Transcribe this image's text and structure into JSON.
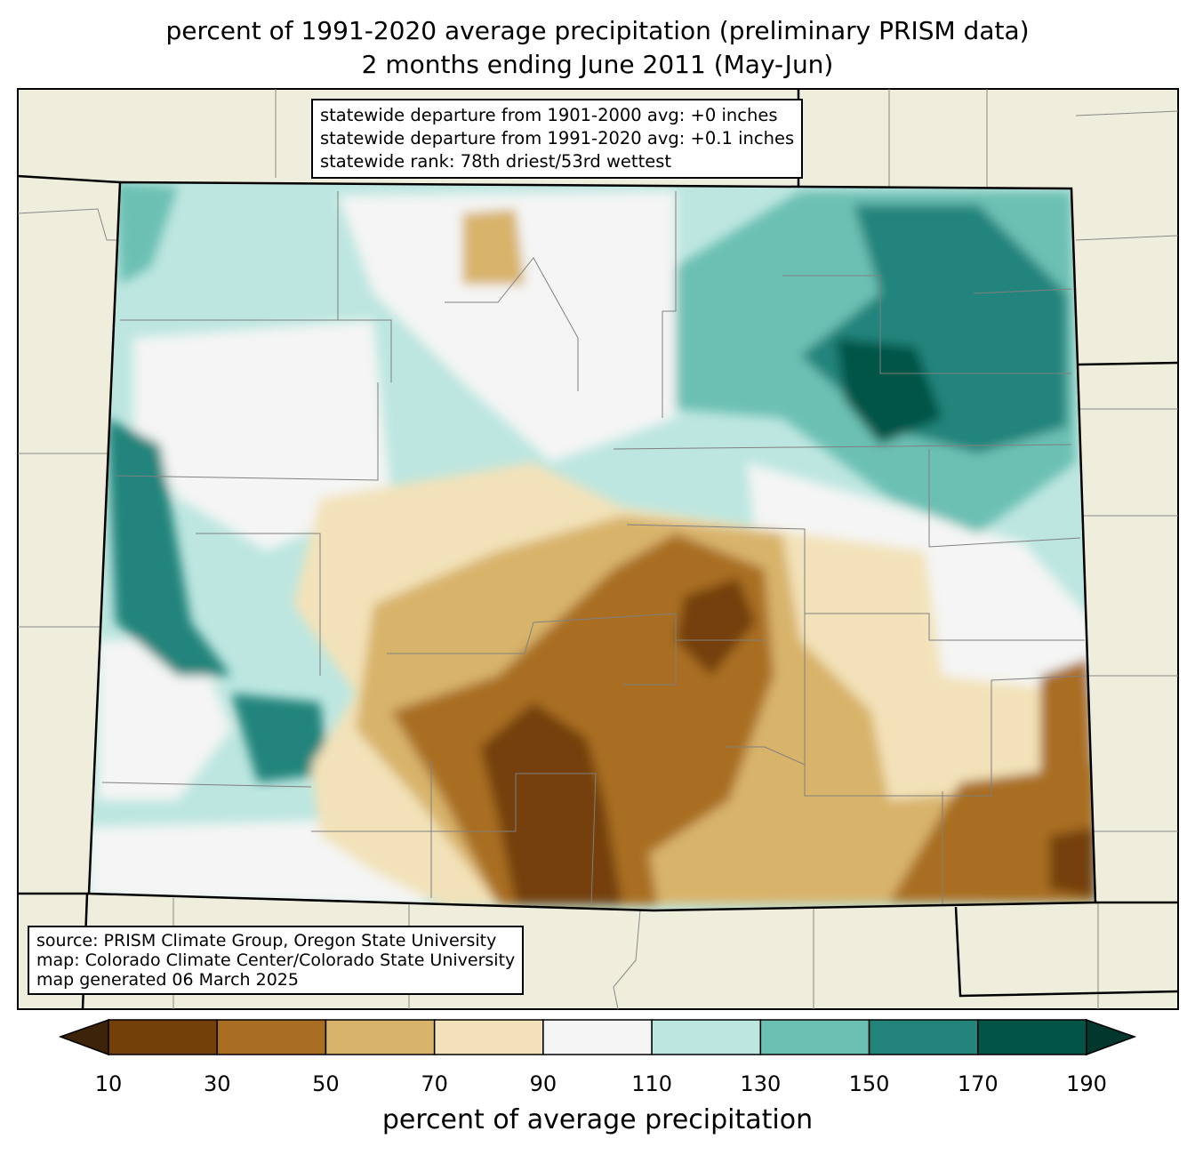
{
  "title": {
    "line1": "percent of 1991-2020 average precipitation (preliminary PRISM data)",
    "line2": "2 months ending June 2011 (May-Jun)"
  },
  "stats_box": {
    "line1": "statewide departure from 1901-2000 avg: +0 inches",
    "line2": "statewide departure from 1991-2020 avg: +0.1 inches",
    "line3": "statewide rank: 78th driest/53rd wettest"
  },
  "source_box": {
    "line1": "source: PRISM Climate Group, Oregon State University",
    "line2": "map: Colorado Climate Center/Colorado State University",
    "line3": "map generated 06 March 2025"
  },
  "colorbar": {
    "label": "percent of average precipitation",
    "ticks": [
      "10",
      "30",
      "50",
      "70",
      "90",
      "110",
      "130",
      "150",
      "170",
      "190"
    ],
    "under_color": "#3d2307",
    "over_color": "#01372d",
    "colors": [
      "#744009",
      "#a96e22",
      "#d8b36a",
      "#f3e2b9",
      "#f4f5f4",
      "#bde6e0",
      "#6cc0b3",
      "#23847c",
      "#015446"
    ]
  },
  "map_colors": {
    "land": "#efeedc",
    "border": "#000000",
    "county": "#808080"
  }
}
